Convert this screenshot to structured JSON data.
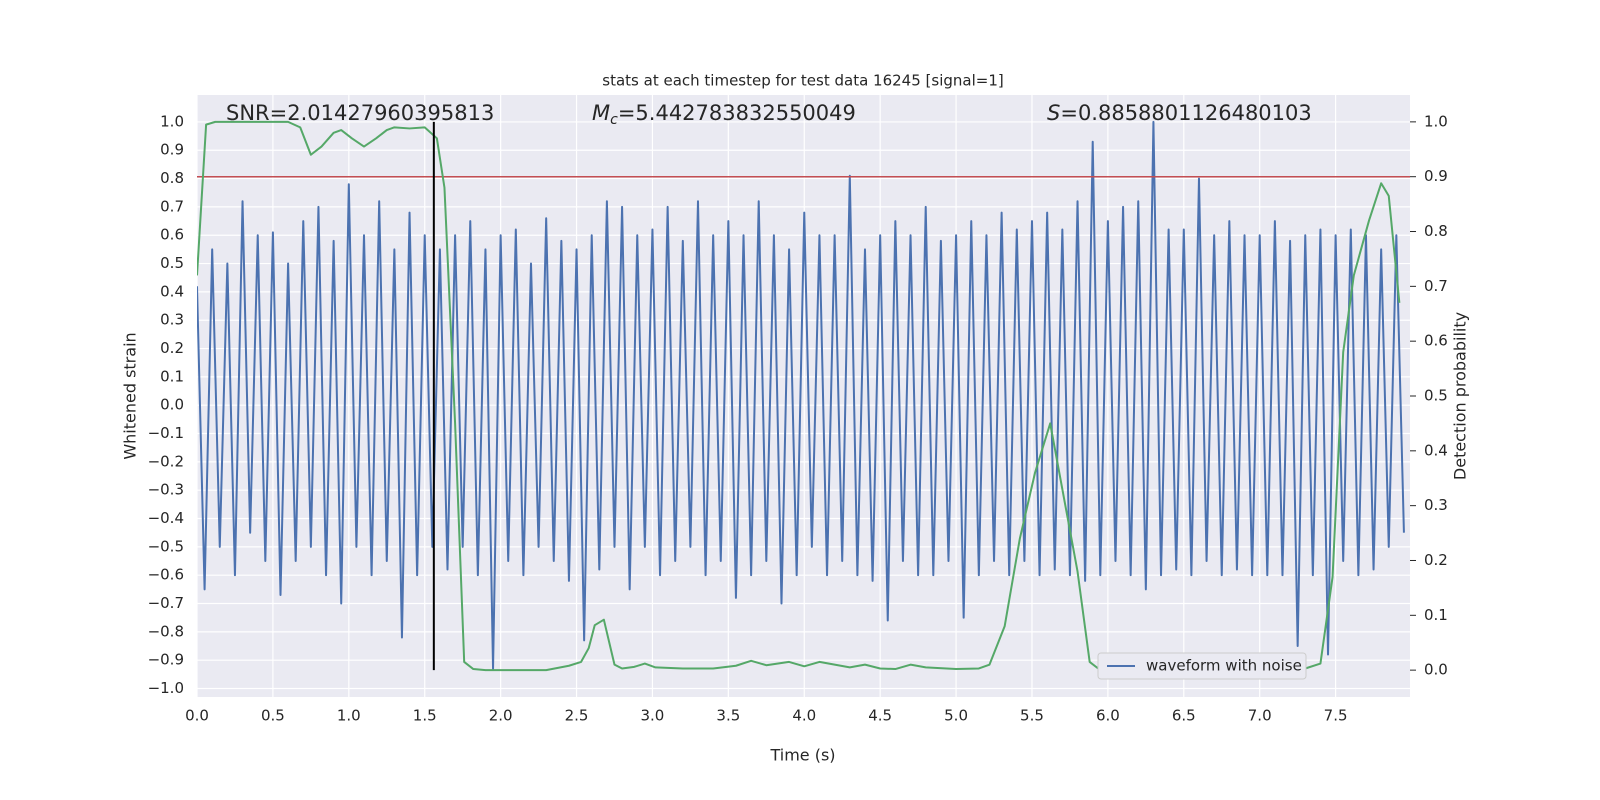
{
  "chart_data": {
    "type": "line",
    "title": "stats at each timestep for test data 16245 [signal=1]",
    "xlabel": "Time (s)",
    "ylabel": "Whitened strain",
    "y2label": "Detection probability",
    "annotations": [
      {
        "text": "SNR=2.01427960395813"
      },
      {
        "symbol": "M",
        "subscript": "c",
        "text": "=5.442783832550049"
      },
      {
        "symbol": "S",
        "text": "=0.8858801126480103"
      }
    ],
    "xlim": [
      0,
      7.99
    ],
    "ylim": [
      -1.03,
      1.095
    ],
    "y2lim": [
      -0.049,
      1.049
    ],
    "xticks": [
      {
        "value": 0,
        "label": "0.0"
      },
      {
        "value": 0.5,
        "label": "0.5"
      },
      {
        "value": 1,
        "label": "1.0"
      },
      {
        "value": 1.5,
        "label": "1.5"
      },
      {
        "value": 2,
        "label": "2.0"
      },
      {
        "value": 2.5,
        "label": "2.5"
      },
      {
        "value": 3,
        "label": "3.0"
      },
      {
        "value": 3.5,
        "label": "3.5"
      },
      {
        "value": 4,
        "label": "4.0"
      },
      {
        "value": 4.5,
        "label": "4.5"
      },
      {
        "value": 5,
        "label": "5.0"
      },
      {
        "value": 5.5,
        "label": "5.5"
      },
      {
        "value": 6,
        "label": "6.0"
      },
      {
        "value": 6.5,
        "label": "6.5"
      },
      {
        "value": 7,
        "label": "7.0"
      },
      {
        "value": 7.5,
        "label": "7.5"
      }
    ],
    "yticks": [
      {
        "value": -1,
        "label": "−1.0"
      },
      {
        "value": -0.9,
        "label": "−0.9"
      },
      {
        "value": -0.8,
        "label": "−0.8"
      },
      {
        "value": -0.7,
        "label": "−0.7"
      },
      {
        "value": -0.6,
        "label": "−0.6"
      },
      {
        "value": -0.5,
        "label": "−0.5"
      },
      {
        "value": -0.4,
        "label": "−0.4"
      },
      {
        "value": -0.3,
        "label": "−0.3"
      },
      {
        "value": -0.2,
        "label": "−0.2"
      },
      {
        "value": -0.1,
        "label": "−0.1"
      },
      {
        "value": 0,
        "label": "0.0"
      },
      {
        "value": 0.1,
        "label": "0.1"
      },
      {
        "value": 0.2,
        "label": "0.2"
      },
      {
        "value": 0.3,
        "label": "0.3"
      },
      {
        "value": 0.4,
        "label": "0.4"
      },
      {
        "value": 0.5,
        "label": "0.5"
      },
      {
        "value": 0.6,
        "label": "0.6"
      },
      {
        "value": 0.7,
        "label": "0.7"
      },
      {
        "value": 0.8,
        "label": "0.8"
      },
      {
        "value": 0.9,
        "label": "0.9"
      },
      {
        "value": 1,
        "label": "1.0"
      }
    ],
    "y2ticks": [
      {
        "value": 0,
        "label": "0.0"
      },
      {
        "value": 0.1,
        "label": "0.1"
      },
      {
        "value": 0.2,
        "label": "0.2"
      },
      {
        "value": 0.3,
        "label": "0.3"
      },
      {
        "value": 0.4,
        "label": "0.4"
      },
      {
        "value": 0.5,
        "label": "0.5"
      },
      {
        "value": 0.6,
        "label": "0.6"
      },
      {
        "value": 0.7,
        "label": "0.7"
      },
      {
        "value": 0.8,
        "label": "0.8"
      },
      {
        "value": 0.9,
        "label": "0.9"
      },
      {
        "value": 1,
        "label": "1.0"
      }
    ],
    "grid": true,
    "legend": "lower right",
    "threshold": {
      "y2": 0.9,
      "color": "#c44e52"
    },
    "vline": {
      "x": 1.56,
      "y2range": [
        0,
        1
      ],
      "color": "#000000"
    },
    "series": [
      {
        "name": "waveform with noise",
        "color": "#4c72b0",
        "x": [
          0,
          0.05,
          0.1,
          0.15,
          0.2,
          0.25,
          0.3,
          0.35,
          0.4,
          0.45,
          0.5,
          0.55,
          0.6,
          0.65,
          0.7,
          0.75,
          0.8,
          0.85,
          0.9,
          0.95,
          1,
          1.05,
          1.1,
          1.15,
          1.2,
          1.25,
          1.3,
          1.35,
          1.4,
          1.45,
          1.5,
          1.55,
          1.6,
          1.65,
          1.7,
          1.75,
          1.8,
          1.85,
          1.9,
          1.95,
          2,
          2.05,
          2.1,
          2.15,
          2.2,
          2.25,
          2.3,
          2.35,
          2.4,
          2.45,
          2.5,
          2.55,
          2.6,
          2.65,
          2.7,
          2.75,
          2.8,
          2.85,
          2.9,
          2.95,
          3,
          3.05,
          3.1,
          3.15,
          3.2,
          3.25,
          3.3,
          3.35,
          3.4,
          3.45,
          3.5,
          3.55,
          3.6,
          3.65,
          3.7,
          3.75,
          3.8,
          3.85,
          3.9,
          3.95,
          4,
          4.05,
          4.1,
          4.15,
          4.2,
          4.25,
          4.3,
          4.35,
          4.4,
          4.45,
          4.5,
          4.55,
          4.6,
          4.65,
          4.7,
          4.75,
          4.8,
          4.85,
          4.9,
          4.95,
          5,
          5.05,
          5.1,
          5.15,
          5.2,
          5.25,
          5.3,
          5.35,
          5.4,
          5.45,
          5.5,
          5.55,
          5.6,
          5.65,
          5.7,
          5.75,
          5.8,
          5.85,
          5.9,
          5.95,
          6,
          6.05,
          6.1,
          6.15,
          6.2,
          6.25,
          6.3,
          6.35,
          6.4,
          6.45,
          6.5,
          6.55,
          6.6,
          6.65,
          6.7,
          6.75,
          6.8,
          6.85,
          6.9,
          6.95,
          7,
          7.05,
          7.1,
          7.15,
          7.2,
          7.25,
          7.3,
          7.35,
          7.4,
          7.45,
          7.5,
          7.55,
          7.6,
          7.65,
          7.7,
          7.75,
          7.8,
          7.85,
          7.9,
          7.95
        ],
        "values": [
          0.42,
          -0.65,
          0.55,
          -0.5,
          0.5,
          -0.6,
          0.72,
          -0.45,
          0.6,
          -0.55,
          0.61,
          -0.67,
          0.5,
          -0.55,
          0.65,
          -0.5,
          0.7,
          -0.6,
          0.58,
          -0.7,
          0.78,
          -0.5,
          0.6,
          -0.6,
          0.72,
          -0.55,
          0.55,
          -0.82,
          0.68,
          -0.6,
          0.6,
          -0.5,
          0.55,
          -0.58,
          0.6,
          -0.5,
          0.65,
          -0.6,
          0.55,
          -0.93,
          0.6,
          -0.55,
          0.62,
          -0.6,
          0.5,
          -0.5,
          0.66,
          -0.55,
          0.58,
          -0.62,
          0.55,
          -0.83,
          0.6,
          -0.58,
          0.72,
          -0.5,
          0.7,
          -0.65,
          0.6,
          -0.5,
          0.62,
          -0.6,
          0.7,
          -0.55,
          0.58,
          -0.5,
          0.72,
          -0.6,
          0.6,
          -0.55,
          0.65,
          -0.68,
          0.6,
          -0.6,
          0.72,
          -0.55,
          0.6,
          -0.7,
          0.55,
          -0.6,
          0.68,
          -0.5,
          0.6,
          -0.6,
          0.6,
          -0.55,
          0.81,
          -0.6,
          0.55,
          -0.62,
          0.6,
          -0.76,
          0.65,
          -0.55,
          0.6,
          -0.6,
          0.7,
          -0.6,
          0.58,
          -0.55,
          0.6,
          -0.75,
          0.65,
          -0.6,
          0.6,
          -0.55,
          0.68,
          -0.6,
          0.62,
          -0.55,
          0.65,
          -0.6,
          0.68,
          -0.58,
          0.62,
          -0.6,
          0.72,
          -0.62,
          0.93,
          -0.6,
          0.65,
          -0.55,
          0.7,
          -0.6,
          0.72,
          -0.65,
          1.0,
          -0.6,
          0.62,
          -0.58,
          0.62,
          -0.6,
          0.8,
          -0.55,
          0.6,
          -0.6,
          0.65,
          -0.58,
          0.6,
          -0.6,
          0.6,
          -0.6,
          0.65,
          -0.6,
          0.58,
          -0.85,
          0.6,
          -0.6,
          0.62,
          -0.88,
          0.6,
          -0.55,
          0.62,
          -0.6,
          0.6,
          -0.58,
          0.55,
          -0.5,
          0.6,
          -0.45
        ]
      },
      {
        "color": "#55a868",
        "axis": "y2",
        "x": [
          0,
          0.06,
          0.12,
          0.3,
          0.6,
          0.68,
          0.75,
          0.82,
          0.9,
          0.95,
          1.02,
          1.1,
          1.18,
          1.25,
          1.3,
          1.4,
          1.5,
          1.58,
          1.63,
          1.7,
          1.76,
          1.82,
          1.9,
          2.2,
          2.3,
          2.45,
          2.53,
          2.58,
          2.62,
          2.68,
          2.75,
          2.8,
          2.88,
          2.95,
          3.02,
          3.2,
          3.4,
          3.55,
          3.65,
          3.75,
          3.9,
          4.0,
          4.1,
          4.2,
          4.3,
          4.4,
          4.5,
          4.6,
          4.7,
          4.8,
          5.0,
          5.15,
          5.22,
          5.32,
          5.42,
          5.52,
          5.62,
          5.7,
          5.8,
          5.88,
          5.95,
          6.05,
          6.2,
          6.4,
          6.55,
          6.65,
          6.75,
          6.9,
          7.1,
          7.3,
          7.4,
          7.48,
          7.55,
          7.62,
          7.72,
          7.8,
          7.85,
          7.92
        ],
        "values": [
          0.72,
          0.995,
          1.0,
          1.0,
          1.0,
          0.99,
          0.94,
          0.955,
          0.98,
          0.985,
          0.97,
          0.955,
          0.97,
          0.985,
          0.99,
          0.988,
          0.99,
          0.97,
          0.88,
          0.45,
          0.015,
          0.002,
          0.0,
          0.0,
          0.0,
          0.008,
          0.015,
          0.04,
          0.082,
          0.092,
          0.01,
          0.003,
          0.006,
          0.012,
          0.005,
          0.003,
          0.003,
          0.008,
          0.017,
          0.009,
          0.015,
          0.007,
          0.015,
          0.01,
          0.005,
          0.01,
          0.003,
          0.002,
          0.01,
          0.005,
          0.002,
          0.003,
          0.01,
          0.08,
          0.24,
          0.36,
          0.45,
          0.33,
          0.18,
          0.015,
          0.0,
          0.003,
          0.002,
          0.002,
          0.004,
          0.01,
          0.003,
          0.0,
          0.0,
          0.003,
          0.012,
          0.17,
          0.58,
          0.72,
          0.82,
          0.888,
          0.865,
          0.67
        ]
      }
    ]
  }
}
